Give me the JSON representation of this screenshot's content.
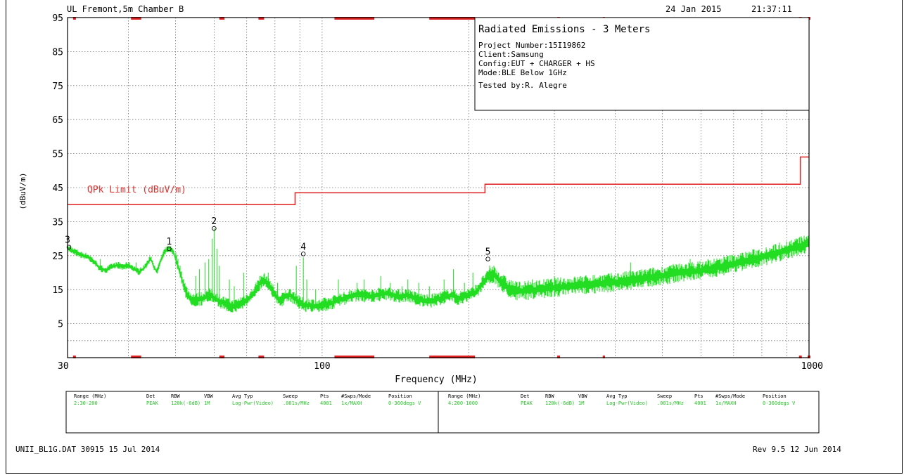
{
  "header": {
    "site": "UL Fremont,5m Chamber B",
    "date": "24 Jan 2015",
    "time": "21:37:11"
  },
  "info_box": {
    "title": "Radiated Emissions - 3 Meters",
    "lines": [
      "Project Number:15I19862",
      "Client:Samsung",
      "Config:EUT + CHARGER + HS",
      "Mode:BLE Below 1GHz",
      "Tested by:R. Alegre"
    ]
  },
  "chart_data": {
    "type": "line",
    "xlabel": "Frequency (MHz)",
    "ylabel": "(dBuV/m)",
    "x_scale": "log",
    "xlim": [
      30,
      1000
    ],
    "ylim": [
      -5,
      95
    ],
    "x_tick_labels": [
      {
        "value": 30,
        "label": "30"
      },
      {
        "value": 100,
        "label": "100"
      },
      {
        "value": 1000,
        "label": "1000"
      }
    ],
    "y_ticks": [
      95,
      85,
      75,
      65,
      55,
      45,
      35,
      25,
      15,
      5
    ],
    "grid": true,
    "limit_line": {
      "name": "QPk Limit (dBuV/m)",
      "color": "#e03030",
      "points": [
        [
          30,
          40
        ],
        [
          88,
          40
        ],
        [
          88,
          43.5
        ],
        [
          216,
          43.5
        ],
        [
          216,
          46
        ],
        [
          960,
          46
        ],
        [
          960,
          54
        ],
        [
          1000,
          54
        ]
      ]
    },
    "trace": {
      "color": "#22dd22",
      "points": [
        [
          30,
          27
        ],
        [
          31,
          26
        ],
        [
          32,
          25
        ],
        [
          33,
          24.5
        ],
        [
          34,
          23
        ],
        [
          35,
          21
        ],
        [
          36,
          20.5
        ],
        [
          37,
          21.5
        ],
        [
          38,
          22
        ],
        [
          39,
          21.5
        ],
        [
          40,
          22
        ],
        [
          41,
          21
        ],
        [
          42,
          20
        ],
        [
          43,
          21
        ],
        [
          44,
          23
        ],
        [
          44.5,
          24
        ],
        [
          45,
          22
        ],
        [
          45.8,
          20
        ],
        [
          46.5,
          23
        ],
        [
          47.5,
          26
        ],
        [
          48.5,
          27
        ],
        [
          49.5,
          26
        ],
        [
          50.5,
          22
        ],
        [
          51.5,
          18
        ],
        [
          52.5,
          14
        ],
        [
          53.5,
          12
        ],
        [
          55,
          11.5
        ],
        [
          57,
          12
        ],
        [
          59,
          13
        ],
        [
          60,
          12
        ],
        [
          62,
          11
        ],
        [
          64,
          10
        ],
        [
          66,
          9.5
        ],
        [
          68,
          10.5
        ],
        [
          70,
          11.5
        ],
        [
          72,
          13
        ],
        [
          74,
          16
        ],
        [
          76,
          17.5
        ],
        [
          78,
          16
        ],
        [
          80,
          13
        ],
        [
          82,
          11
        ],
        [
          84,
          12.5
        ],
        [
          86,
          13
        ],
        [
          88,
          12
        ],
        [
          90,
          10.5
        ],
        [
          92,
          10
        ],
        [
          95,
          10
        ],
        [
          98,
          9.5
        ],
        [
          100,
          10
        ],
        [
          104,
          10.5
        ],
        [
          108,
          11.5
        ],
        [
          112,
          12
        ],
        [
          116,
          13
        ],
        [
          120,
          13
        ],
        [
          125,
          12.5
        ],
        [
          130,
          13
        ],
        [
          135,
          13.5
        ],
        [
          140,
          13
        ],
        [
          145,
          12.5
        ],
        [
          150,
          13
        ],
        [
          155,
          12
        ],
        [
          160,
          11.5
        ],
        [
          165,
          11
        ],
        [
          170,
          11.5
        ],
        [
          175,
          12
        ],
        [
          180,
          12.5
        ],
        [
          185,
          13
        ],
        [
          190,
          12
        ],
        [
          195,
          12.5
        ],
        [
          200,
          13
        ],
        [
          205,
          13.5
        ],
        [
          210,
          15
        ],
        [
          215,
          17
        ],
        [
          220,
          18.5
        ],
        [
          225,
          19
        ],
        [
          230,
          17.5
        ],
        [
          240,
          15
        ],
        [
          250,
          14
        ],
        [
          260,
          14
        ],
        [
          280,
          14.5
        ],
        [
          300,
          15
        ],
        [
          330,
          15.5
        ],
        [
          360,
          16
        ],
        [
          400,
          16.5
        ],
        [
          450,
          17.5
        ],
        [
          500,
          18.5
        ],
        [
          550,
          19.5
        ],
        [
          600,
          20
        ],
        [
          650,
          21
        ],
        [
          700,
          22
        ],
        [
          750,
          23
        ],
        [
          800,
          24
        ],
        [
          850,
          25
        ],
        [
          900,
          26
        ],
        [
          950,
          27
        ],
        [
          1000,
          28
        ]
      ],
      "spurs": [
        [
          35,
          24
        ],
        [
          41.5,
          23
        ],
        [
          55,
          19
        ],
        [
          56,
          21
        ],
        [
          57.5,
          23
        ],
        [
          58.5,
          24
        ],
        [
          59.5,
          30
        ],
        [
          60,
          33
        ],
        [
          60.8,
          27
        ],
        [
          61.5,
          22
        ],
        [
          64.5,
          18
        ],
        [
          66,
          16
        ],
        [
          69,
          20
        ],
        [
          74.5,
          19
        ],
        [
          77.5,
          20
        ],
        [
          81,
          17
        ],
        [
          88.5,
          22
        ],
        [
          91.5,
          24.5
        ],
        [
          93,
          18
        ],
        [
          97,
          15
        ],
        [
          108,
          18
        ],
        [
          118,
          17
        ],
        [
          122,
          18
        ],
        [
          132,
          19
        ],
        [
          138,
          17
        ],
        [
          146,
          16
        ],
        [
          150,
          18
        ],
        [
          158,
          17
        ],
        [
          166,
          16
        ],
        [
          178,
          18
        ],
        [
          186,
          21
        ],
        [
          196,
          17
        ],
        [
          204,
          20
        ],
        [
          235,
          19
        ],
        [
          270,
          18
        ],
        [
          300,
          19
        ],
        [
          340,
          19
        ],
        [
          390,
          19
        ],
        [
          430,
          23
        ],
        [
          470,
          21
        ],
        [
          520,
          22
        ],
        [
          570,
          24
        ],
        [
          620,
          24
        ],
        [
          680,
          25
        ],
        [
          760,
          26
        ],
        [
          840,
          27
        ],
        [
          930,
          29
        ]
      ]
    },
    "markers": [
      {
        "label": "1",
        "x": 48.5,
        "y": 27
      },
      {
        "label": "2",
        "x": 60,
        "y": 33
      },
      {
        "label": "3",
        "x": 30,
        "y": 27.5
      },
      {
        "label": "4",
        "x": 91.5,
        "y": 25.5
      },
      {
        "label": "5",
        "x": 219,
        "y": 24
      }
    ],
    "scan_segments": [
      [
        40.5,
        42.5
      ],
      [
        61.5,
        63
      ],
      [
        74,
        76
      ],
      [
        106,
        128
      ],
      [
        166,
        206
      ],
      [
        304,
        308
      ],
      [
        377,
        381
      ]
    ]
  },
  "settings_table": {
    "headers": [
      "Range (MHz)",
      "Det",
      "RBW",
      "VBW",
      "Avg Typ",
      "Sweep",
      "Pts",
      "#Swps/Mode",
      "Position"
    ],
    "rows": [
      [
        "2:30-200",
        "PEAK",
        "120k(-6dB)",
        "1M",
        "Log-Pwr(Video)",
        ".001s/MHz",
        "4001",
        "1x/MAXH",
        "0-360degs V"
      ],
      [
        "4:200-1000",
        "PEAK",
        "120k(-6dB)",
        "1M",
        "Log-Pwr(Video)",
        ".001s/MHz",
        "4001",
        "1x/MAXH",
        "0-360degs V"
      ]
    ]
  },
  "footer": {
    "left": "UNII_BL1G.DAT 30915 15 Jul 2014",
    "right": "Rev 9.5 12 Jun 2014"
  }
}
